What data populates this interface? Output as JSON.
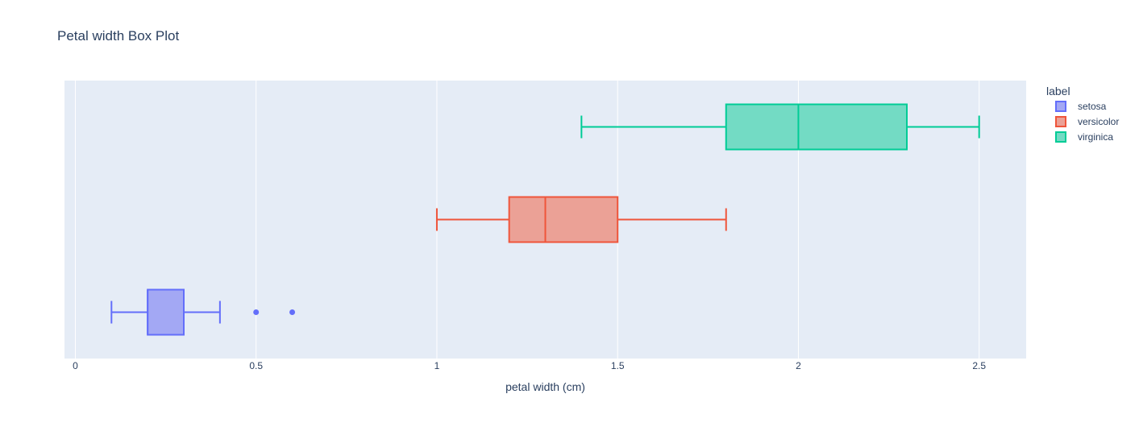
{
  "chart_data": {
    "type": "box",
    "orientation": "horizontal",
    "title": "Petal width Box Plot",
    "xlabel": "petal width (cm)",
    "ylabel": "",
    "xlim": [
      -0.03,
      2.63
    ],
    "xticks": [
      0,
      0.5,
      1,
      1.5,
      2,
      2.5
    ],
    "xtick_labels": [
      "0",
      "0.5",
      "1",
      "1.5",
      "2",
      "2.5"
    ],
    "grid": true,
    "legend": {
      "title": "label",
      "placement": "top-right"
    },
    "series": [
      {
        "name": "setosa",
        "color": "#636efa",
        "fill": "#a3a8f4",
        "min": 0.1,
        "q1": 0.2,
        "median": 0.2,
        "q3": 0.3,
        "max": 0.4,
        "outliers": [
          0.5,
          0.6
        ]
      },
      {
        "name": "versicolor",
        "color": "#ef553b",
        "fill": "#eba196",
        "min": 1.0,
        "q1": 1.2,
        "median": 1.3,
        "q3": 1.5,
        "max": 1.8,
        "outliers": []
      },
      {
        "name": "virginica",
        "color": "#00cc96",
        "fill": "#73dbc4",
        "min": 1.4,
        "q1": 1.8,
        "median": 2.0,
        "q3": 2.3,
        "max": 2.5,
        "outliers": []
      }
    ]
  }
}
